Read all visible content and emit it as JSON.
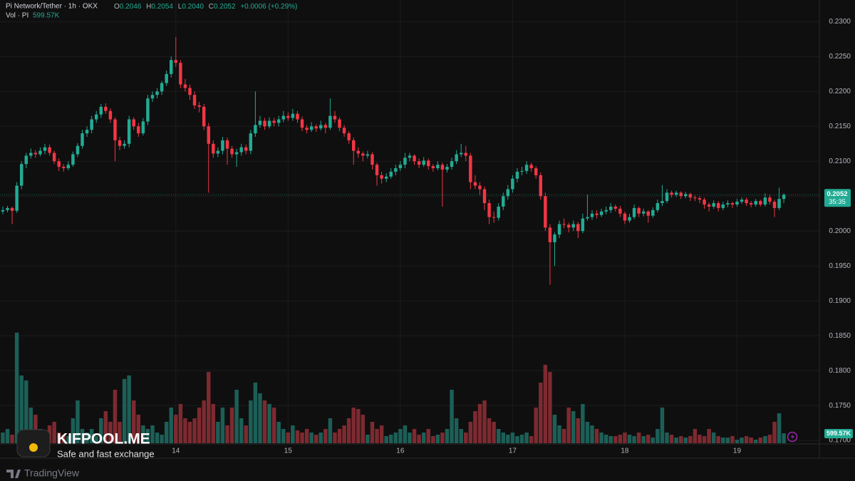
{
  "chart_data": {
    "type": "candlestick",
    "title": "Pi Network/Tether · 1h · OKX",
    "header": {
      "open_key": "O",
      "open": "0.2046",
      "high_key": "H",
      "high": "0.2054",
      "low_key": "L",
      "low": "0.2040",
      "close_key": "C",
      "close": "0.2052",
      "change": "+0.0006 (+0.29%)"
    },
    "volume_title": "Vol · PI",
    "current_volume": {
      "value": 599.57,
      "label": "599.57K"
    },
    "current_price": {
      "value": 0.2052,
      "label": "0.2052"
    },
    "countdown": "35:35",
    "up_color": "#22ab94",
    "down_color": "#f23645",
    "up_volume_color": "#1c5f57",
    "down_volume_color": "#7d2a30",
    "grid": true,
    "ylim": [
      0.1695,
      0.2331
    ],
    "yticks": [
      {
        "value": 0.23,
        "label": "0.2300"
      },
      {
        "value": 0.225,
        "label": "0.2250"
      },
      {
        "value": 0.22,
        "label": "0.2200"
      },
      {
        "value": 0.215,
        "label": "0.2150"
      },
      {
        "value": 0.21,
        "label": "0.2100"
      },
      {
        "value": 0.205,
        "label": "0.2050"
      },
      {
        "value": 0.2,
        "label": "0.2000"
      },
      {
        "value": 0.195,
        "label": "0.1950"
      },
      {
        "value": 0.19,
        "label": "0.1900"
      },
      {
        "value": 0.185,
        "label": "0.1850"
      },
      {
        "value": 0.18,
        "label": "0.1800"
      },
      {
        "value": 0.175,
        "label": "0.1750"
      },
      {
        "value": 0.17,
        "label": "0.1700"
      }
    ],
    "xlim": [
      -0.6,
      174.6
    ],
    "xticks": [
      {
        "value": 37,
        "label": "14"
      },
      {
        "value": 61,
        "label": "15"
      },
      {
        "value": 85,
        "label": "16"
      },
      {
        "value": 109,
        "label": "17"
      },
      {
        "value": 133,
        "label": "18"
      },
      {
        "value": 157,
        "label": "19"
      }
    ],
    "volume_lim": [
      0,
      7000
    ],
    "ohlc": [
      [
        0.2028,
        0.2035,
        0.2024,
        0.203
      ],
      [
        0.203,
        0.2036,
        0.2027,
        0.2033
      ],
      [
        0.2033,
        0.2035,
        0.201,
        0.2029
      ],
      [
        0.2029,
        0.207,
        0.2026,
        0.2065
      ],
      [
        0.2065,
        0.21,
        0.206,
        0.2096
      ],
      [
        0.2096,
        0.2112,
        0.209,
        0.2108
      ],
      [
        0.2108,
        0.2118,
        0.2104,
        0.2112
      ],
      [
        0.2112,
        0.2116,
        0.2105,
        0.211
      ],
      [
        0.211,
        0.212,
        0.2107,
        0.2115
      ],
      [
        0.2115,
        0.2125,
        0.211,
        0.212
      ],
      [
        0.212,
        0.2124,
        0.2108,
        0.2112
      ],
      [
        0.2112,
        0.2115,
        0.2096,
        0.21
      ],
      [
        0.21,
        0.2104,
        0.2086,
        0.2092
      ],
      [
        0.2092,
        0.2096,
        0.2085,
        0.209
      ],
      [
        0.209,
        0.21,
        0.2087,
        0.2095
      ],
      [
        0.2095,
        0.2114,
        0.2092,
        0.211
      ],
      [
        0.211,
        0.2126,
        0.2106,
        0.2122
      ],
      [
        0.2122,
        0.2145,
        0.2118,
        0.214
      ],
      [
        0.214,
        0.215,
        0.2135,
        0.2145
      ],
      [
        0.2145,
        0.2165,
        0.214,
        0.216
      ],
      [
        0.216,
        0.2172,
        0.2155,
        0.2167
      ],
      [
        0.2167,
        0.2182,
        0.2162,
        0.2178
      ],
      [
        0.2178,
        0.2183,
        0.2168,
        0.2172
      ],
      [
        0.2172,
        0.2176,
        0.2155,
        0.216
      ],
      [
        0.216,
        0.2163,
        0.21,
        0.213
      ],
      [
        0.213,
        0.2135,
        0.2116,
        0.2122
      ],
      [
        0.2122,
        0.213,
        0.2118,
        0.2125
      ],
      [
        0.2125,
        0.2165,
        0.212,
        0.216
      ],
      [
        0.216,
        0.2163,
        0.2145,
        0.215
      ],
      [
        0.215,
        0.2155,
        0.2135,
        0.214
      ],
      [
        0.214,
        0.2162,
        0.2137,
        0.2157
      ],
      [
        0.2157,
        0.2195,
        0.2152,
        0.219
      ],
      [
        0.219,
        0.22,
        0.2185,
        0.2195
      ],
      [
        0.2195,
        0.2205,
        0.219,
        0.22
      ],
      [
        0.22,
        0.2215,
        0.2195,
        0.2212
      ],
      [
        0.2212,
        0.223,
        0.2208,
        0.2225
      ],
      [
        0.2225,
        0.225,
        0.222,
        0.2245
      ],
      [
        0.2245,
        0.2278,
        0.2235,
        0.2241
      ],
      [
        0.2241,
        0.2245,
        0.2205,
        0.221
      ],
      [
        0.221,
        0.2218,
        0.22,
        0.2205
      ],
      [
        0.2205,
        0.221,
        0.2188,
        0.2195
      ],
      [
        0.2195,
        0.22,
        0.2175,
        0.218
      ],
      [
        0.218,
        0.2185,
        0.217,
        0.2178
      ],
      [
        0.2178,
        0.2182,
        0.2145,
        0.215
      ],
      [
        0.215,
        0.2155,
        0.2055,
        0.2125
      ],
      [
        0.2125,
        0.213,
        0.2105,
        0.2111
      ],
      [
        0.2111,
        0.212,
        0.2106,
        0.2115
      ],
      [
        0.2115,
        0.2135,
        0.211,
        0.213
      ],
      [
        0.213,
        0.2134,
        0.2095,
        0.2118
      ],
      [
        0.2118,
        0.2122,
        0.2105,
        0.211
      ],
      [
        0.211,
        0.2118,
        0.2092,
        0.2113
      ],
      [
        0.2113,
        0.2125,
        0.2108,
        0.212
      ],
      [
        0.212,
        0.2124,
        0.211,
        0.2115
      ],
      [
        0.2115,
        0.2145,
        0.211,
        0.214
      ],
      [
        0.214,
        0.22,
        0.2135,
        0.2152
      ],
      [
        0.2152,
        0.2165,
        0.2148,
        0.2158
      ],
      [
        0.2158,
        0.2162,
        0.2145,
        0.215
      ],
      [
        0.215,
        0.2163,
        0.2147,
        0.2158
      ],
      [
        0.2158,
        0.2162,
        0.215,
        0.2155
      ],
      [
        0.2155,
        0.2165,
        0.215,
        0.216
      ],
      [
        0.216,
        0.2172,
        0.2156,
        0.2165
      ],
      [
        0.2165,
        0.217,
        0.2158,
        0.2162
      ],
      [
        0.2162,
        0.2175,
        0.2158,
        0.2168
      ],
      [
        0.2168,
        0.2172,
        0.2155,
        0.216
      ],
      [
        0.216,
        0.2164,
        0.2143,
        0.2148
      ],
      [
        0.2148,
        0.2152,
        0.214,
        0.2145
      ],
      [
        0.2145,
        0.2156,
        0.2142,
        0.215
      ],
      [
        0.215,
        0.2153,
        0.2142,
        0.2147
      ],
      [
        0.2147,
        0.2158,
        0.2144,
        0.2152
      ],
      [
        0.2152,
        0.2155,
        0.214,
        0.2148
      ],
      [
        0.2148,
        0.219,
        0.2145,
        0.2165
      ],
      [
        0.2165,
        0.2172,
        0.2155,
        0.216
      ],
      [
        0.216,
        0.2163,
        0.2143,
        0.2148
      ],
      [
        0.2148,
        0.2152,
        0.2135,
        0.214
      ],
      [
        0.214,
        0.2143,
        0.2125,
        0.213
      ],
      [
        0.213,
        0.2134,
        0.2095,
        0.2115
      ],
      [
        0.2115,
        0.212,
        0.2105,
        0.2111
      ],
      [
        0.2111,
        0.2114,
        0.21,
        0.2108
      ],
      [
        0.2108,
        0.2115,
        0.2104,
        0.211
      ],
      [
        0.211,
        0.2113,
        0.2088,
        0.2095
      ],
      [
        0.2095,
        0.2098,
        0.2065,
        0.208
      ],
      [
        0.208,
        0.2085,
        0.2068,
        0.2075
      ],
      [
        0.2075,
        0.2083,
        0.207,
        0.2078
      ],
      [
        0.2078,
        0.209,
        0.2075,
        0.2085
      ],
      [
        0.2085,
        0.2095,
        0.208,
        0.209
      ],
      [
        0.209,
        0.21,
        0.2086,
        0.2095
      ],
      [
        0.2095,
        0.2112,
        0.209,
        0.2105
      ],
      [
        0.2105,
        0.2112,
        0.21,
        0.2108
      ],
      [
        0.2108,
        0.211,
        0.2095,
        0.21
      ],
      [
        0.21,
        0.2104,
        0.209,
        0.2095
      ],
      [
        0.2095,
        0.2106,
        0.2092,
        0.2101
      ],
      [
        0.2101,
        0.2104,
        0.2088,
        0.2093
      ],
      [
        0.2093,
        0.2096,
        0.2085,
        0.209
      ],
      [
        0.209,
        0.21,
        0.2087,
        0.2095
      ],
      [
        0.2095,
        0.2098,
        0.2035,
        0.2088
      ],
      [
        0.2088,
        0.2096,
        0.2084,
        0.2092
      ],
      [
        0.2092,
        0.2105,
        0.2088,
        0.21
      ],
      [
        0.21,
        0.2116,
        0.2096,
        0.211
      ],
      [
        0.211,
        0.2125,
        0.2106,
        0.2112
      ],
      [
        0.2112,
        0.2122,
        0.21,
        0.2108
      ],
      [
        0.2108,
        0.2112,
        0.206,
        0.207
      ],
      [
        0.207,
        0.208,
        0.206,
        0.2065
      ],
      [
        0.2065,
        0.207,
        0.2052,
        0.206
      ],
      [
        0.206,
        0.2064,
        0.203,
        0.204
      ],
      [
        0.204,
        0.2045,
        0.201,
        0.202
      ],
      [
        0.202,
        0.2028,
        0.2012,
        0.2019
      ],
      [
        0.2019,
        0.204,
        0.2015,
        0.2035
      ],
      [
        0.2035,
        0.2055,
        0.203,
        0.205
      ],
      [
        0.205,
        0.2066,
        0.2045,
        0.206
      ],
      [
        0.206,
        0.208,
        0.2055,
        0.2075
      ],
      [
        0.2075,
        0.209,
        0.207,
        0.2085
      ],
      [
        0.2085,
        0.2092,
        0.208,
        0.2086
      ],
      [
        0.2086,
        0.21,
        0.2082,
        0.2095
      ],
      [
        0.2095,
        0.2098,
        0.2085,
        0.209
      ],
      [
        0.209,
        0.2093,
        0.2075,
        0.208
      ],
      [
        0.208,
        0.2084,
        0.2045,
        0.205
      ],
      [
        0.205,
        0.2055,
        0.2,
        0.2005
      ],
      [
        0.2005,
        0.201,
        0.1923,
        0.1984
      ],
      [
        0.1984,
        0.1998,
        0.195,
        0.1995
      ],
      [
        0.1995,
        0.2015,
        0.199,
        0.201
      ],
      [
        0.201,
        0.2018,
        0.2004,
        0.2009
      ],
      [
        0.2009,
        0.2012,
        0.1998,
        0.2005
      ],
      [
        0.2005,
        0.2015,
        0.2,
        0.201
      ],
      [
        0.201,
        0.2013,
        0.199,
        0.2
      ],
      [
        0.2,
        0.2025,
        0.1997,
        0.2018
      ],
      [
        0.2018,
        0.2052,
        0.2015,
        0.202
      ],
      [
        0.202,
        0.203,
        0.2016,
        0.2025
      ],
      [
        0.2025,
        0.203,
        0.2018,
        0.2023
      ],
      [
        0.2023,
        0.2032,
        0.202,
        0.2028
      ],
      [
        0.2028,
        0.2035,
        0.2024,
        0.203
      ],
      [
        0.203,
        0.204,
        0.2026,
        0.2035
      ],
      [
        0.2035,
        0.2038,
        0.2028,
        0.2032
      ],
      [
        0.2032,
        0.2036,
        0.202,
        0.2025
      ],
      [
        0.2025,
        0.2028,
        0.201,
        0.2015
      ],
      [
        0.2015,
        0.2025,
        0.2012,
        0.202
      ],
      [
        0.202,
        0.2038,
        0.2017,
        0.2033
      ],
      [
        0.2033,
        0.2035,
        0.202,
        0.2025
      ],
      [
        0.2025,
        0.2032,
        0.2021,
        0.2028
      ],
      [
        0.2028,
        0.203,
        0.2012,
        0.2022
      ],
      [
        0.2022,
        0.2034,
        0.2019,
        0.203
      ],
      [
        0.203,
        0.2045,
        0.2027,
        0.204
      ],
      [
        0.204,
        0.2066,
        0.2036,
        0.2043
      ],
      [
        0.2043,
        0.206,
        0.204,
        0.2055
      ],
      [
        0.2055,
        0.2058,
        0.2048,
        0.2052
      ],
      [
        0.2052,
        0.2058,
        0.2049,
        0.2055
      ],
      [
        0.2055,
        0.2057,
        0.2046,
        0.205
      ],
      [
        0.205,
        0.2056,
        0.2047,
        0.2053
      ],
      [
        0.2053,
        0.2055,
        0.2043,
        0.2048
      ],
      [
        0.2048,
        0.2051,
        0.2043,
        0.2047
      ],
      [
        0.2047,
        0.205,
        0.204,
        0.2045
      ],
      [
        0.2045,
        0.2048,
        0.2032,
        0.2038
      ],
      [
        0.2038,
        0.2041,
        0.2028,
        0.2035
      ],
      [
        0.2035,
        0.2044,
        0.2032,
        0.204
      ],
      [
        0.204,
        0.2043,
        0.2028,
        0.2033
      ],
      [
        0.2033,
        0.2042,
        0.203,
        0.2038
      ],
      [
        0.2038,
        0.2044,
        0.2034,
        0.204
      ],
      [
        0.204,
        0.2042,
        0.2033,
        0.2038
      ],
      [
        0.2038,
        0.2046,
        0.2035,
        0.2042
      ],
      [
        0.2042,
        0.2048,
        0.2039,
        0.2045
      ],
      [
        0.2045,
        0.2048,
        0.2036,
        0.204
      ],
      [
        0.204,
        0.2043,
        0.2034,
        0.2038
      ],
      [
        0.2038,
        0.2046,
        0.2035,
        0.2043
      ],
      [
        0.2043,
        0.2045,
        0.2035,
        0.2038
      ],
      [
        0.2038,
        0.2054,
        0.2035,
        0.2048
      ],
      [
        0.2048,
        0.2052,
        0.2038,
        0.2042
      ],
      [
        0.2042,
        0.2045,
        0.202,
        0.2033
      ],
      [
        0.2033,
        0.2062,
        0.203,
        0.2046
      ],
      [
        0.2046,
        0.2054,
        0.204,
        0.2052
      ]
    ],
    "volume": [
      645,
      860,
      516,
      6665,
      4085,
      3784,
      2150,
      1720,
      860,
      430,
      1075,
      1290,
      645,
      516,
      430,
      1505,
      2580,
      860,
      645,
      860,
      430,
      1505,
      1935,
      1290,
      3225,
      1290,
      3870,
      4085,
      2580,
      1720,
      1075,
      860,
      1075,
      645,
      516,
      1290,
      2150,
      1720,
      2365,
      1505,
      1290,
      1505,
      2150,
      2580,
      4300,
      2365,
      1290,
      2150,
      1075,
      2150,
      3225,
      1505,
      1075,
      2580,
      3655,
      3010,
      2580,
      2365,
      2150,
      1290,
      860,
      645,
      1075,
      774,
      645,
      860,
      645,
      516,
      645,
      860,
      1505,
      645,
      860,
      1075,
      1505,
      2150,
      2064,
      1720,
      516,
      1290,
      860,
      1075,
      430,
      516,
      645,
      860,
      1075,
      645,
      860,
      516,
      645,
      860,
      430,
      516,
      645,
      860,
      3225,
      1505,
      860,
      645,
      1290,
      1935,
      2365,
      2580,
      1505,
      1290,
      860,
      645,
      516,
      645,
      430,
      516,
      645,
      430,
      2150,
      3655,
      4730,
      4300,
      1720,
      1075,
      860,
      2150,
      1935,
      1505,
      2365,
      1290,
      1075,
      860,
      645,
      516,
      430,
      430,
      516,
      645,
      516,
      430,
      645,
      430,
      516,
      344,
      860,
      2150,
      645,
      516,
      344,
      430,
      344,
      430,
      860,
      516,
      430,
      860,
      645,
      430,
      344,
      344,
      430,
      215,
      344,
      430,
      344,
      215,
      344,
      430,
      516,
      1290,
      1806,
      599.57
    ]
  },
  "watermark": {
    "brand": "KIFPOOL.ME",
    "tagline": "Safe and fast exchange",
    "platform": "TradingView"
  }
}
